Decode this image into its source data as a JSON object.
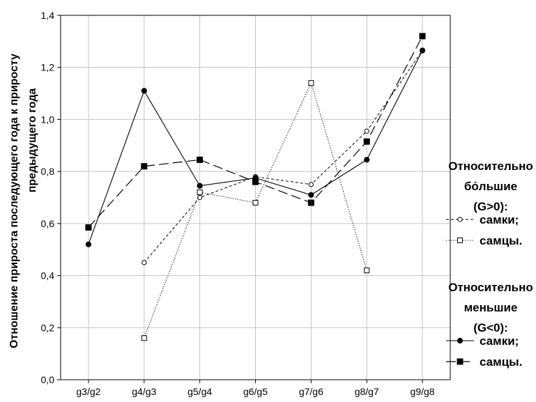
{
  "chart_data": {
    "type": "line",
    "categories": [
      "g3/g2",
      "g4/g3",
      "g5/g4",
      "g6/g5",
      "g7/g6",
      "g8/g7",
      "g9/g8"
    ],
    "ylabel_line1": "Отношение прироста последующего года к приросту",
    "ylabel_line2": "предыдущего года",
    "ylim": [
      0,
      1.4
    ],
    "yticks": [
      "0,0",
      "0,2",
      "0,4",
      "0,6",
      "0,8",
      "1,0",
      "1,2",
      "1,4"
    ],
    "grid": true,
    "legend_position": "right",
    "legend_groups": [
      {
        "title_lines": [
          "Относительно",
          "бо́льшие",
          "(G>0):"
        ]
      },
      {
        "title_lines": [
          "Относительно",
          "меньшие",
          "(G<0):"
        ]
      }
    ],
    "series": [
      {
        "name": "самки;",
        "group": 0,
        "marker": "circle-open",
        "line": "dashed",
        "color": "#000000",
        "values": [
          null,
          0.45,
          0.7,
          0.78,
          0.75,
          0.955,
          1.265
        ]
      },
      {
        "name": "самцы.",
        "group": 0,
        "marker": "square-open",
        "line": "dotted",
        "color": "#000000",
        "values": [
          null,
          0.16,
          0.72,
          0.68,
          1.14,
          0.42,
          null
        ]
      },
      {
        "name": "самки;",
        "group": 1,
        "marker": "circle-filled",
        "line": "solid",
        "color": "#000000",
        "values": [
          0.52,
          1.11,
          0.745,
          0.775,
          0.71,
          0.845,
          1.265
        ]
      },
      {
        "name": "самцы.",
        "group": 1,
        "marker": "square-filled",
        "line": "longdash",
        "color": "#000000",
        "values": [
          0.585,
          0.82,
          0.845,
          0.76,
          0.68,
          0.915,
          1.32
        ]
      }
    ]
  }
}
